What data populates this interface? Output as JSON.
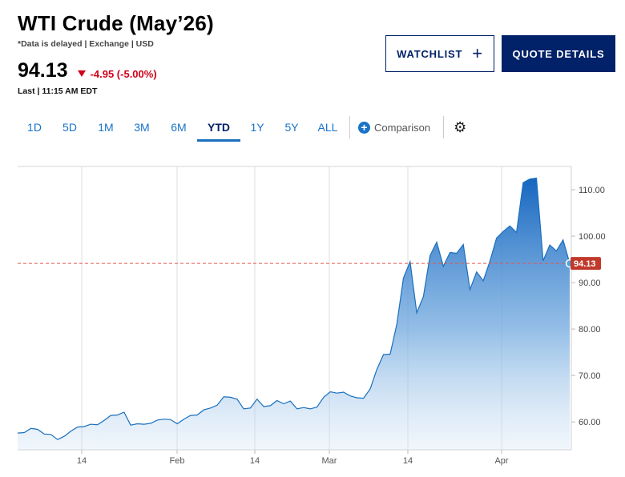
{
  "header": {
    "title": "WTI Crude (May’26)",
    "subtitle": "*Data is delayed | Exchange | USD",
    "last_price": "94.13",
    "change": "-4.95 (-5.00%)",
    "last_time": "Last | 11:15 AM EDT",
    "change_color": "#d0021b"
  },
  "buttons": {
    "watchlist": "WATCHLIST",
    "watchlist_icon": "plus-icon",
    "quote_details": "QUOTE DETAILS",
    "brand_color": "#012169"
  },
  "ranges": [
    "1D",
    "5D",
    "1M",
    "3M",
    "6M",
    "YTD",
    "1Y",
    "5Y",
    "ALL"
  ],
  "active_range": "YTD",
  "comparison_label": "Comparison",
  "settings_icon": "gear-icon",
  "chart_data": {
    "type": "area",
    "x_tick_labels": [
      "14",
      "Feb",
      "14",
      "Mar",
      "14",
      "Apr"
    ],
    "y_tick_labels": [
      "60.00",
      "70.00",
      "80.00",
      "90.00",
      "100.00",
      "110.00"
    ],
    "ylim": [
      54,
      115
    ],
    "last_value_label": "94.13",
    "reference_line": 94.13,
    "line_color": "#1a6fbd",
    "reference_color": "#d0021b",
    "grid": "vertical",
    "values": [
      57.6,
      57.7,
      58.6,
      58.4,
      57.4,
      57.3,
      56.2,
      56.9,
      58.0,
      58.9,
      59.0,
      59.5,
      59.4,
      60.3,
      61.4,
      61.5,
      62.1,
      59.3,
      59.6,
      59.5,
      59.7,
      60.4,
      60.6,
      60.5,
      59.6,
      60.6,
      61.4,
      61.5,
      62.6,
      63.0,
      63.6,
      65.4,
      65.3,
      64.9,
      62.8,
      63.0,
      64.9,
      63.3,
      63.5,
      64.6,
      63.9,
      64.5,
      62.8,
      63.1,
      62.8,
      63.2,
      65.3,
      66.5,
      66.2,
      66.4,
      65.6,
      65.2,
      65.1,
      67.1,
      71.3,
      74.5,
      74.6,
      81.0,
      91.0,
      94.5,
      83.5,
      87.0,
      95.8,
      98.7,
      93.5,
      96.5,
      96.3,
      98.2,
      88.5,
      92.3,
      90.4,
      94.6,
      99.6,
      101.0,
      102.2,
      100.8,
      111.5,
      112.3,
      112.5,
      94.7,
      98.1,
      96.8,
      99.2,
      94.13
    ]
  }
}
